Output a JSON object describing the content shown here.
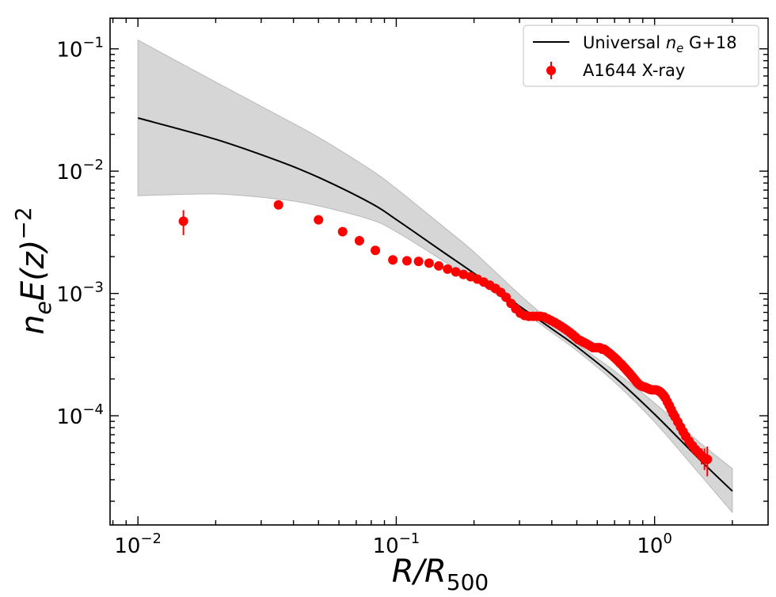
{
  "chart_data": {
    "type": "scatter",
    "xscale": "log",
    "yscale": "log",
    "xlim": [
      0.0078,
      2.75
    ],
    "ylim": [
      1.28e-05,
      0.178
    ],
    "x_ticks": [
      {
        "value": 0.01,
        "base": "10",
        "exp": "−2"
      },
      {
        "value": 0.1,
        "base": "10",
        "exp": "−1"
      },
      {
        "value": 1,
        "base": "10",
        "exp": "0"
      }
    ],
    "y_ticks": [
      {
        "value": 0.0001,
        "base": "10",
        "exp": "−4"
      },
      {
        "value": 0.001,
        "base": "10",
        "exp": "−3"
      },
      {
        "value": 0.01,
        "base": "10",
        "exp": "−2"
      },
      {
        "value": 0.1,
        "base": "10",
        "exp": "−1"
      }
    ],
    "xlabel": {
      "main": "R/R",
      "sub": "500"
    },
    "ylabel": {
      "n": "n",
      "n_sub": "e",
      "rest": "E(z)",
      "sup": "−2"
    },
    "legend_position": "top-right",
    "colors": {
      "model": "#000000",
      "band": "#d6d6d6",
      "band_edge": "#b9b9b9",
      "points": "#ff0000"
    },
    "series": [
      {
        "name": "Universal n_e G+18",
        "legend_parts": {
          "pre": "Universal ",
          "n": "n",
          "sub": "e",
          "post": " G+18"
        },
        "type": "line-band",
        "x": [
          0.01,
          0.02,
          0.035,
          0.05,
          0.08,
          0.1,
          0.15,
          0.2,
          0.3,
          0.4,
          0.5,
          0.7,
          1.0,
          1.5,
          2.0
        ],
        "y": [
          0.0272,
          0.0182,
          0.0121,
          0.0089,
          0.00545,
          0.00402,
          0.00222,
          0.00146,
          0.000787,
          0.000514,
          0.000367,
          0.000207,
          0.000103,
          4.35e-05,
          2.42e-05
        ],
        "y_low": [
          0.0063,
          0.0065,
          0.0059,
          0.0052,
          0.004,
          0.0032,
          0.00188,
          0.00128,
          0.00074,
          0.00048,
          0.00034,
          0.000188,
          8.9e-05,
          3.3e-05,
          1.62e-05
        ],
        "y_high": [
          0.118,
          0.0535,
          0.0285,
          0.0189,
          0.0102,
          0.0072,
          0.0036,
          0.00218,
          0.00098,
          0.00058,
          0.00039,
          0.000232,
          0.000127,
          6e-05,
          3.7e-05
        ]
      },
      {
        "name": "A1644 X-ray",
        "type": "scatter",
        "x": [
          0.015,
          0.035,
          0.05,
          0.062,
          0.072,
          0.083,
          0.097,
          0.11,
          0.122,
          0.134,
          0.146,
          0.158,
          0.17,
          0.182,
          0.194,
          0.206,
          0.218,
          0.23,
          0.242,
          0.254,
          0.266,
          0.278,
          0.29,
          0.302,
          0.314,
          0.326,
          0.338,
          0.35,
          0.362,
          0.374,
          0.386,
          0.398,
          0.41,
          0.422,
          0.434,
          0.446,
          0.458,
          0.47,
          0.482,
          0.494,
          0.506,
          0.518,
          0.53,
          0.542,
          0.554,
          0.566,
          0.578,
          0.59,
          0.602,
          0.614,
          0.626,
          0.638,
          0.65,
          0.662,
          0.674,
          0.686,
          0.698,
          0.71,
          0.722,
          0.734,
          0.746,
          0.758,
          0.77,
          0.782,
          0.794,
          0.806,
          0.818,
          0.83,
          0.842,
          0.854,
          0.866,
          0.878,
          0.89,
          0.902,
          0.914,
          0.926,
          0.938,
          0.95,
          0.962,
          0.974,
          0.986,
          0.998,
          1.01,
          1.022,
          1.034,
          1.046,
          1.058,
          1.07,
          1.085,
          1.1,
          1.12,
          1.14,
          1.16,
          1.18,
          1.2,
          1.23,
          1.26,
          1.29,
          1.32,
          1.36,
          1.4,
          1.44,
          1.48,
          1.52,
          1.56,
          1.6
        ],
        "y": [
          0.0039,
          0.0053,
          0.004,
          0.0032,
          0.0027,
          0.00225,
          0.00188,
          0.00185,
          0.00183,
          0.00177,
          0.00168,
          0.00158,
          0.0015,
          0.00143,
          0.00137,
          0.00131,
          0.00124,
          0.00117,
          0.0011,
          0.00102,
          0.00093,
          0.00083,
          0.00075,
          0.00069,
          0.00066,
          0.00065,
          0.00065,
          0.00065,
          0.00065,
          0.00064,
          0.00062,
          0.0006,
          0.00058,
          0.00056,
          0.00054,
          0.00052,
          0.0005,
          0.00048,
          0.00046,
          0.00044,
          0.00042,
          0.00041,
          0.0004,
          0.00039,
          0.00038,
          0.00037,
          0.00036,
          0.00036,
          0.00036,
          0.00036,
          0.00035,
          0.00035,
          0.00034,
          0.00033,
          0.00032,
          0.00031,
          0.0003,
          0.00029,
          0.00028,
          0.00027,
          0.000262,
          0.000252,
          0.000243,
          0.000234,
          0.000226,
          0.000218,
          0.00021,
          0.000202,
          0.000195,
          0.000188,
          0.000182,
          0.000178,
          0.000175,
          0.000173,
          0.000172,
          0.00017,
          0.000168,
          0.000166,
          0.000164,
          0.000163,
          0.000163,
          0.000163,
          0.000163,
          0.000162,
          0.00016,
          0.000158,
          0.000155,
          0.000151,
          0.000146,
          0.00014,
          0.00013,
          0.000121,
          0.000112,
          0.000104,
          9.8e-05,
          8.9e-05,
          8.1e-05,
          7.4e-05,
          6.8e-05,
          6.2e-05,
          5.7e-05,
          5.3e-05,
          5e-05,
          4.7e-05,
          4.5e-05,
          4.4e-05
        ],
        "y_err": [
          0.0009,
          0,
          0,
          0,
          0,
          0,
          0,
          0,
          0,
          0,
          0,
          0,
          0,
          0,
          0,
          0,
          0,
          0,
          0,
          0,
          0,
          0,
          0,
          0,
          0,
          0,
          0,
          0,
          0,
          0,
          0,
          0,
          0,
          0,
          0,
          0,
          0,
          0,
          0,
          0,
          0,
          0,
          0,
          0,
          0,
          0,
          0,
          0,
          0,
          0,
          0,
          0,
          0,
          0,
          0,
          0,
          0,
          0,
          0,
          0,
          0,
          0,
          0,
          0,
          0,
          0,
          0,
          0,
          0,
          0,
          0,
          0,
          0,
          0,
          0,
          0,
          0,
          0,
          0,
          0,
          0,
          0,
          0,
          0,
          0,
          0,
          0,
          0,
          0,
          0,
          0,
          0,
          0,
          0,
          0,
          0,
          0,
          0,
          0,
          0,
          0,
          5e-06,
          6e-06,
          7e-06,
          9e-06,
          1.2e-05
        ]
      }
    ]
  }
}
